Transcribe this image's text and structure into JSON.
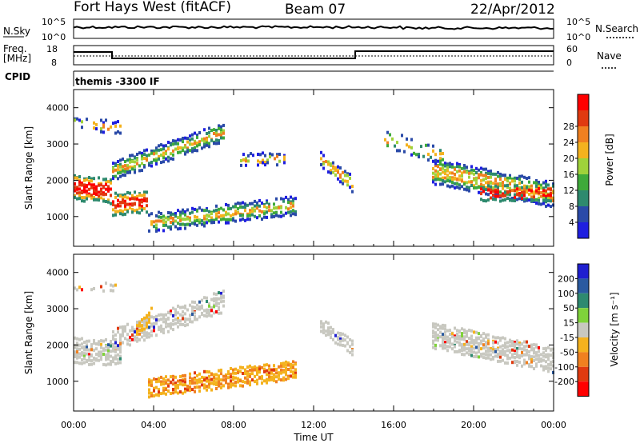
{
  "header": {
    "station": "Fort Hays West (fitACF)",
    "beam": "Beam 07",
    "date": "22/Apr/2012"
  },
  "noise_panel": {
    "left_label": "N.Sky",
    "right_label": "N.Search",
    "tick_top": "10^5",
    "tick_bottom": "10^0"
  },
  "freq_panel": {
    "label_line1": "Freq.",
    "label_line2": "[MHz]",
    "ticks_left": [
      "18",
      "8"
    ],
    "right_label": "Nave",
    "ticks_right": [
      "60",
      "0"
    ]
  },
  "cpid_panel": {
    "label": "CPID",
    "text": "themis -3300 IF"
  },
  "chart_data": [
    {
      "type": "heatmap",
      "name": "power",
      "ylabel": "Slant Range [km]",
      "xlabel": "Time UT",
      "ylim": [
        180,
        4500
      ],
      "yticks": [
        1000,
        2000,
        3000,
        4000
      ],
      "xticks": [
        "00:00",
        "04:00",
        "08:00",
        "12:00",
        "16:00",
        "20:00",
        "00:00"
      ],
      "colorbar": {
        "label": "Power [dB]",
        "levels": [
          "4",
          "8",
          "12",
          "16",
          "20",
          "24",
          "28"
        ],
        "colors": [
          "#1f1fe0",
          "#2a4aa8",
          "#2e8a6e",
          "#3faa3a",
          "#9fd23a",
          "#f4b21e",
          "#f08020",
          "#e03a10",
          "#ff0000"
        ]
      }
    },
    {
      "type": "heatmap",
      "name": "velocity",
      "ylabel": "Slant Range [km]",
      "xlabel": "Time UT",
      "ylim": [
        180,
        4500
      ],
      "yticks": [
        1000,
        2000,
        3000,
        4000
      ],
      "xticks": [
        "00:00",
        "04:00",
        "08:00",
        "12:00",
        "16:00",
        "20:00",
        "00:00"
      ],
      "colorbar": {
        "label": "Velocity [m s⁻¹]",
        "levels": [
          "200",
          "100",
          "50",
          "15",
          "-15",
          "-50",
          "-100",
          "-200"
        ],
        "colors": [
          "#1f1fd0",
          "#2a5aa0",
          "#2e8a70",
          "#7fd23a",
          "#c8c8c0",
          "#f4b21e",
          "#f08020",
          "#e03a10",
          "#ff0000"
        ]
      }
    }
  ]
}
